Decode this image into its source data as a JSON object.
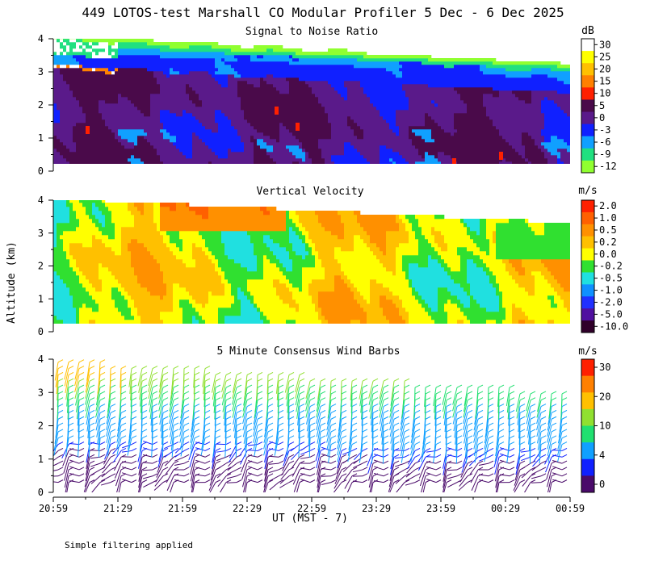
{
  "title": "449 LOTOS-test Marshall CO Modular Profiler  5 Dec -  6 Dec 2025",
  "footer_note": "Simple filtering applied",
  "chart_data": [
    {
      "type": "heatmap",
      "title": "Signal to Noise Ratio",
      "ylabel": "",
      "ylim": [
        0,
        4
      ],
      "yticks": [
        "0",
        "1",
        "2",
        "3",
        "4"
      ],
      "colorbar": {
        "unit": "dB",
        "labels": [
          "30",
          "25",
          "20",
          "15",
          "10",
          "5",
          "0",
          "-3",
          "-6",
          "-9",
          "-12"
        ],
        "colors": [
          "#ffffff",
          "#ffff00",
          "#ffc000",
          "#ff8000",
          "#ff2000",
          "#4a0a4a",
          "#5a1a8a",
          "#1020ff",
          "#10a0ff",
          "#20e080",
          "#90ff30"
        ]
      }
    },
    {
      "type": "heatmap",
      "title": "Vertical Velocity",
      "ylabel": "Altitude (km)",
      "ylim": [
        0,
        4
      ],
      "yticks": [
        "0",
        "1",
        "2",
        "3",
        "4"
      ],
      "colorbar": {
        "unit": "m/s",
        "labels": [
          "2.0",
          "1.0",
          "0.5",
          "0.2",
          "0.0",
          "-0.2",
          "-0.5",
          "-1.0",
          "-2.0",
          "-5.0",
          "-10.0"
        ],
        "colors": [
          "#ff2000",
          "#ff6000",
          "#ff9000",
          "#ffc000",
          "#ffff00",
          "#30e030",
          "#20e0e0",
          "#1090ff",
          "#2030ff",
          "#5010a0",
          "#30002a"
        ]
      }
    },
    {
      "type": "scatter",
      "title": "5 Minute Consensus Wind Barbs",
      "ylim": [
        0,
        4
      ],
      "yticks": [
        "0",
        "1",
        "2",
        "3",
        "4"
      ],
      "colorbar": {
        "unit": "m/s",
        "labels": [
          "30",
          "20",
          "10",
          "4",
          "0"
        ],
        "colors": [
          "#ff2000",
          "#ff8000",
          "#ffc000",
          "#90e030",
          "#20e070",
          "#10a0ff",
          "#1020ff",
          "#4a0a6a"
        ]
      }
    }
  ],
  "x_axis": {
    "ticks": [
      "20:59",
      "21:29",
      "21:59",
      "22:29",
      "22:59",
      "23:29",
      "23:59",
      "00:29",
      "00:59"
    ],
    "label": "UT  (MST - 7)"
  }
}
